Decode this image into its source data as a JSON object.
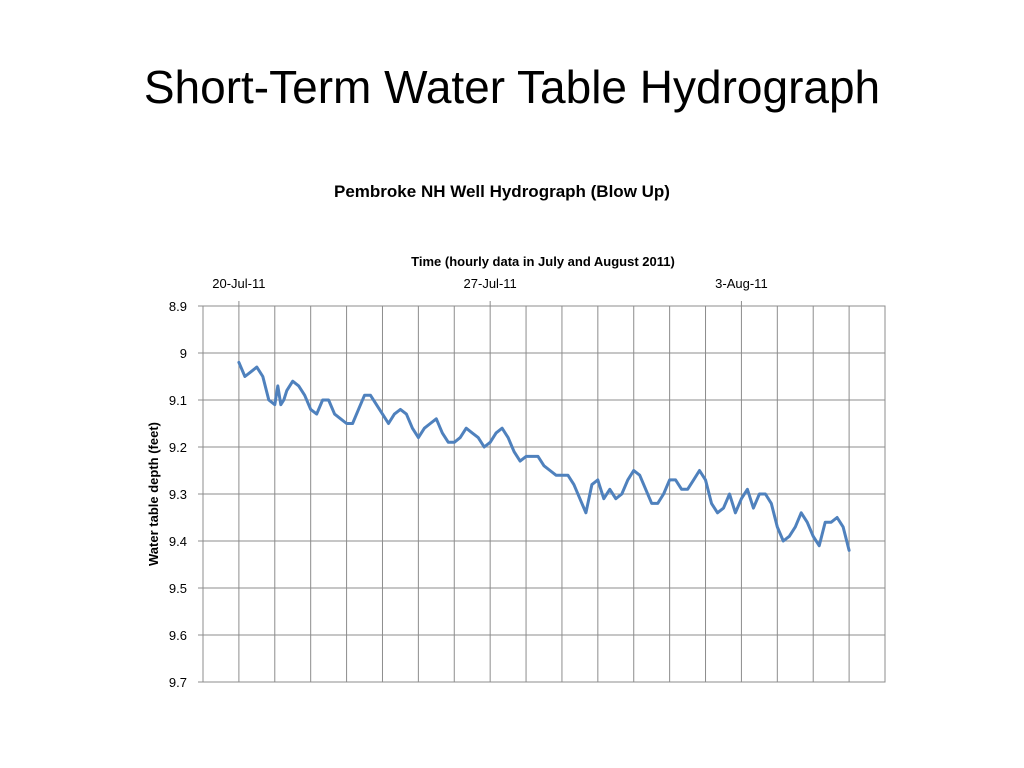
{
  "slide": {
    "title": "Short-Term Water Table Hydrograph"
  },
  "chart_data": {
    "type": "line",
    "title": "Pembroke NH Well Hydrograph (Blow Up)",
    "xlabel": "Time (hourly data in July and August 2011)",
    "ylabel": "Water table depth (feet)",
    "x_axis_position": "top",
    "y_axis_reversed": true,
    "grid": true,
    "xlim": [
      "2011-07-19",
      "2011-08-07"
    ],
    "ylim": [
      8.9,
      9.7
    ],
    "x_ticks": [
      {
        "date": "2011-07-20",
        "label": "20-Jul-11"
      },
      {
        "date": "2011-07-27",
        "label": "27-Jul-11"
      },
      {
        "date": "2011-08-03",
        "label": "3-Aug-11"
      }
    ],
    "y_ticks": [
      {
        "value": 8.9,
        "label": "8.9"
      },
      {
        "value": 9.0,
        "label": "9"
      },
      {
        "value": 9.1,
        "label": "9.1"
      },
      {
        "value": 9.2,
        "label": "9.2"
      },
      {
        "value": 9.3,
        "label": "9.3"
      },
      {
        "value": 9.4,
        "label": "9.4"
      },
      {
        "value": 9.5,
        "label": "9.5"
      },
      {
        "value": 9.6,
        "label": "9.6"
      },
      {
        "value": 9.7,
        "label": "9.7"
      }
    ],
    "series": [
      {
        "color": "#4F81BD",
        "x": [
          "2011-07-20 00:00",
          "2011-07-20 04:00",
          "2011-07-20 08:00",
          "2011-07-20 12:00",
          "2011-07-20 16:00",
          "2011-07-20 20:00",
          "2011-07-21 00:00",
          "2011-07-21 02:00",
          "2011-07-21 04:00",
          "2011-07-21 06:00",
          "2011-07-21 08:00",
          "2011-07-21 12:00",
          "2011-07-21 16:00",
          "2011-07-21 20:00",
          "2011-07-22 00:00",
          "2011-07-22 04:00",
          "2011-07-22 08:00",
          "2011-07-22 12:00",
          "2011-07-22 16:00",
          "2011-07-22 20:00",
          "2011-07-23 00:00",
          "2011-07-23 04:00",
          "2011-07-23 08:00",
          "2011-07-23 12:00",
          "2011-07-23 16:00",
          "2011-07-23 20:00",
          "2011-07-24 00:00",
          "2011-07-24 04:00",
          "2011-07-24 08:00",
          "2011-07-24 12:00",
          "2011-07-24 16:00",
          "2011-07-24 20:00",
          "2011-07-25 00:00",
          "2011-07-25 04:00",
          "2011-07-25 08:00",
          "2011-07-25 12:00",
          "2011-07-25 16:00",
          "2011-07-25 20:00",
          "2011-07-26 00:00",
          "2011-07-26 04:00",
          "2011-07-26 08:00",
          "2011-07-26 12:00",
          "2011-07-26 16:00",
          "2011-07-26 20:00",
          "2011-07-27 00:00",
          "2011-07-27 04:00",
          "2011-07-27 08:00",
          "2011-07-27 12:00",
          "2011-07-27 16:00",
          "2011-07-27 20:00",
          "2011-07-28 00:00",
          "2011-07-28 04:00",
          "2011-07-28 08:00",
          "2011-07-28 12:00",
          "2011-07-28 16:00",
          "2011-07-28 20:00",
          "2011-07-29 00:00",
          "2011-07-29 04:00",
          "2011-07-29 08:00",
          "2011-07-29 12:00",
          "2011-07-29 16:00",
          "2011-07-29 20:00",
          "2011-07-30 00:00",
          "2011-07-30 04:00",
          "2011-07-30 08:00",
          "2011-07-30 12:00",
          "2011-07-30 16:00",
          "2011-07-30 20:00",
          "2011-07-31 00:00",
          "2011-07-31 04:00",
          "2011-07-31 08:00",
          "2011-07-31 12:00",
          "2011-07-31 16:00",
          "2011-07-31 20:00",
          "2011-08-01 00:00",
          "2011-08-01 04:00",
          "2011-08-01 08:00",
          "2011-08-01 12:00",
          "2011-08-01 16:00",
          "2011-08-01 20:00",
          "2011-08-02 00:00",
          "2011-08-02 04:00",
          "2011-08-02 08:00",
          "2011-08-02 12:00",
          "2011-08-02 16:00",
          "2011-08-02 20:00",
          "2011-08-03 00:00",
          "2011-08-03 04:00",
          "2011-08-03 08:00",
          "2011-08-03 12:00",
          "2011-08-03 16:00",
          "2011-08-03 20:00",
          "2011-08-04 00:00",
          "2011-08-04 04:00",
          "2011-08-04 08:00",
          "2011-08-04 12:00",
          "2011-08-04 16:00",
          "2011-08-04 20:00",
          "2011-08-05 00:00",
          "2011-08-05 04:00",
          "2011-08-05 08:00",
          "2011-08-05 12:00",
          "2011-08-05 16:00",
          "2011-08-05 20:00",
          "2011-08-06 00:00"
        ],
        "y": [
          9.02,
          9.05,
          9.04,
          9.03,
          9.05,
          9.1,
          9.11,
          9.07,
          9.11,
          9.1,
          9.08,
          9.06,
          9.07,
          9.09,
          9.12,
          9.13,
          9.1,
          9.1,
          9.13,
          9.14,
          9.15,
          9.15,
          9.12,
          9.09,
          9.09,
          9.11,
          9.13,
          9.15,
          9.13,
          9.12,
          9.13,
          9.16,
          9.18,
          9.16,
          9.15,
          9.14,
          9.17,
          9.19,
          9.19,
          9.18,
          9.16,
          9.17,
          9.18,
          9.2,
          9.19,
          9.17,
          9.16,
          9.18,
          9.21,
          9.23,
          9.22,
          9.22,
          9.22,
          9.24,
          9.25,
          9.26,
          9.26,
          9.26,
          9.28,
          9.31,
          9.34,
          9.28,
          9.27,
          9.31,
          9.29,
          9.31,
          9.3,
          9.27,
          9.25,
          9.26,
          9.29,
          9.32,
          9.32,
          9.3,
          9.27,
          9.27,
          9.29,
          9.29,
          9.27,
          9.25,
          9.27,
          9.32,
          9.34,
          9.33,
          9.3,
          9.34,
          9.31,
          9.29,
          9.33,
          9.3,
          9.3,
          9.32,
          9.37,
          9.4,
          9.39,
          9.37,
          9.34,
          9.36,
          9.39,
          9.41,
          9.36,
          9.36,
          9.35,
          9.37,
          9.42
        ]
      }
    ]
  }
}
